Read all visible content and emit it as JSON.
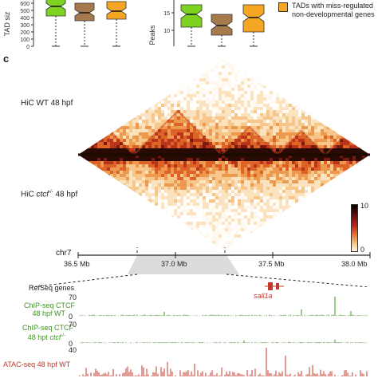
{
  "panel_label": "c",
  "boxplot_left": {
    "ylabel": "TAD siz",
    "yticks": [
      "0",
      "100",
      "200",
      "300",
      "400",
      "500",
      "600"
    ],
    "colors": [
      "#7ed321",
      "#a57a4d",
      "#f5a623"
    ]
  },
  "boxplot_right": {
    "ylabel": "Peaks",
    "yticks": [
      "10",
      "15"
    ],
    "colors": [
      "#7ed321",
      "#a57a4d",
      "#f5a623"
    ]
  },
  "legend": {
    "line1": "TADs with miss-regulated",
    "line2": "non-developmental genes",
    "color": "#f5a623"
  },
  "hic": {
    "wt_label": "HiC WT 48 hpf",
    "mut_label_pre": "HiC ",
    "mut_label_gene": "ctcf",
    "mut_label_sup": "-/-",
    "mut_label_post": " 48 hpf",
    "colorbar_max": "10",
    "colorbar_min": "0"
  },
  "genome_axis": {
    "chrom": "chr7",
    "ticks": [
      "36.5 Mb",
      "37.0 Mb",
      "37.5 Mb",
      "38.0 Mb"
    ]
  },
  "tracks": {
    "refseq_label": "RefSeq genes",
    "gene_name": "sall1a",
    "ctcf_wt_line1": "ChIP-seq CTCF",
    "ctcf_wt_line2": "48 hpf WT",
    "ctcf_wt_max": "70",
    "ctcf_wt_min": "0",
    "ctcf_mut_line1": "ChIP-seq CTCF",
    "ctcf_mut_line2_pre": "48 hpt ",
    "ctcf_mut_line2_gene": "ctcf",
    "ctcf_mut_line2_sup": "-/-",
    "ctcf_mut_max": "70",
    "ctcf_mut_min": "0",
    "atac_line1": "ATAC-seq 48 hpf WT",
    "atac_max": "40",
    "green_color": "#3a9a1a",
    "red_color": "#c0392b"
  }
}
